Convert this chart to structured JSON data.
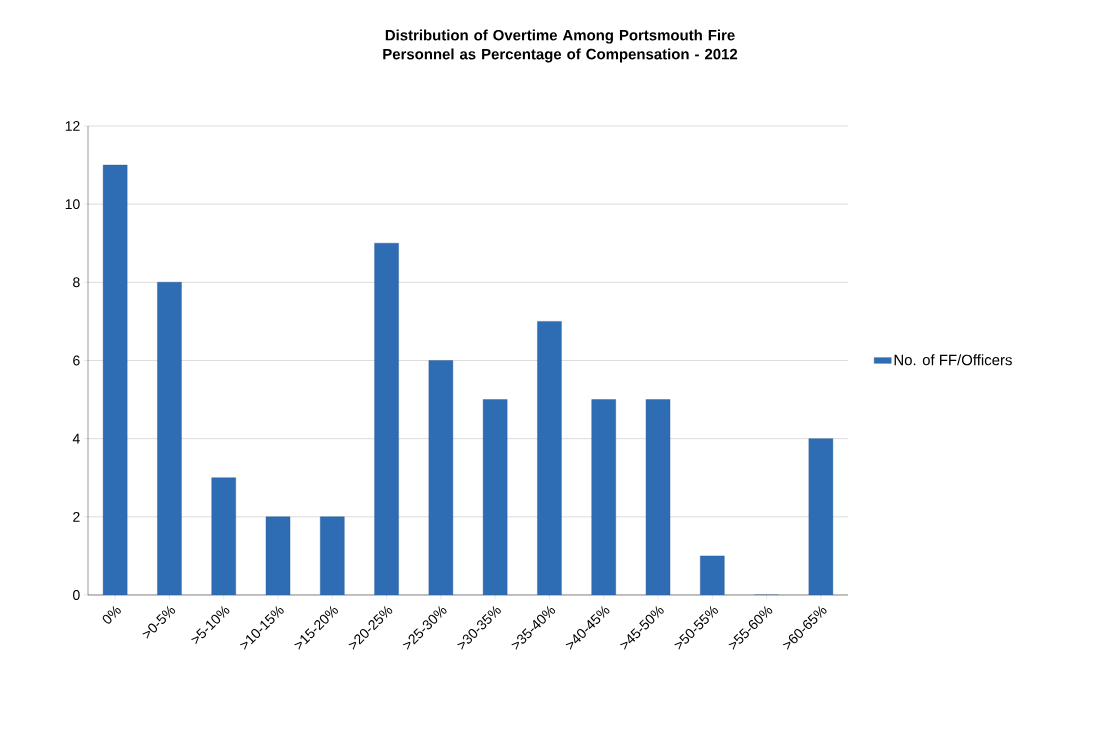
{
  "chart_data": {
    "type": "bar",
    "title": "Distribution of Overtime Among Portsmouth Fire Personnel as Percentage of Compensation - 2012",
    "categories": [
      "0%",
      ">0-5%",
      ">5-10%",
      ">10-15%",
      ">15-20%",
      ">20-25%",
      ">25-30%",
      ">30-35%",
      ">35-40%",
      ">40-45%",
      ">45-50%",
      ">50-55%",
      ">55-60%",
      ">60-65%"
    ],
    "series": [
      {
        "name": "No. of FF/Officers",
        "color": "#2e6db4",
        "values": [
          11,
          8,
          3,
          2,
          2,
          9,
          6,
          5,
          7,
          5,
          5,
          1,
          0,
          4
        ]
      }
    ],
    "ylim": [
      0,
      12
    ],
    "yticks": [
      0,
      2,
      4,
      6,
      8,
      10,
      12
    ],
    "grid": "y",
    "legend": "right"
  }
}
